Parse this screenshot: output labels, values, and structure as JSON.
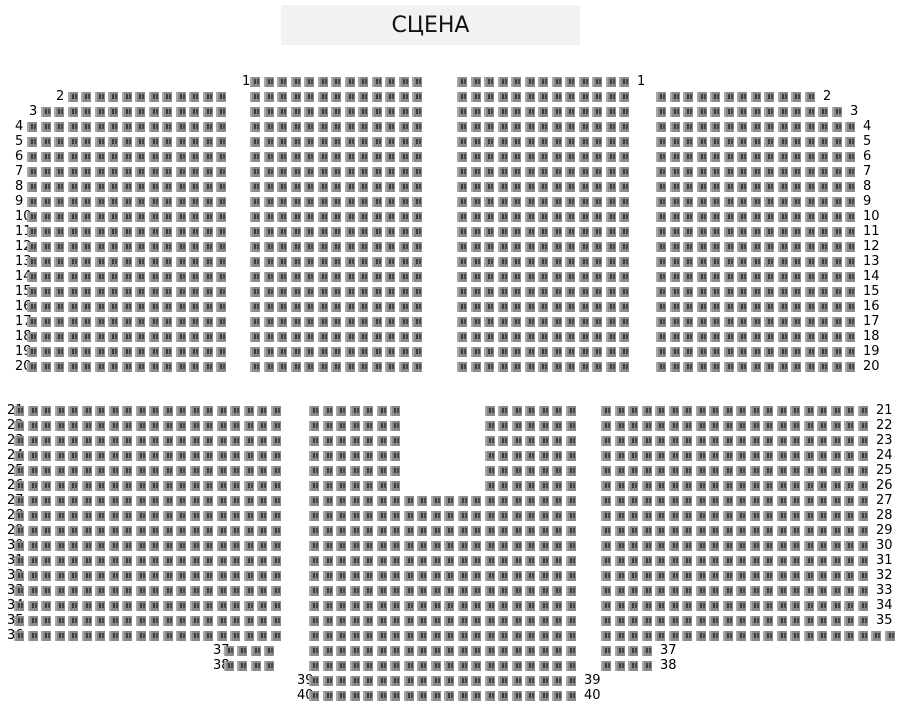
{
  "stage": {
    "label": "СЦЕНА"
  },
  "colors": {
    "seat": "#8a8a8a",
    "stage_bg": "#f2f2f2"
  },
  "blocks": [
    {
      "id": "top-left",
      "rows": [
        {
          "row": 2,
          "seats": 12,
          "labels": "left"
        },
        {
          "row": 3,
          "seats": 14,
          "labels": "left"
        },
        {
          "row": 4,
          "seats": 15,
          "labels": "left"
        },
        {
          "row": 5,
          "seats": 15,
          "labels": "left"
        },
        {
          "row": 6,
          "seats": 15,
          "labels": "left"
        },
        {
          "row": 7,
          "seats": 15,
          "labels": "left"
        },
        {
          "row": 8,
          "seats": 15,
          "labels": "left"
        },
        {
          "row": 9,
          "seats": 15,
          "labels": "left"
        },
        {
          "row": 10,
          "seats": 15,
          "labels": "left"
        },
        {
          "row": 11,
          "seats": 15,
          "labels": "left"
        },
        {
          "row": 12,
          "seats": 15,
          "labels": "left"
        },
        {
          "row": 13,
          "seats": 15,
          "labels": "left"
        },
        {
          "row": 14,
          "seats": 15,
          "labels": "left"
        },
        {
          "row": 15,
          "seats": 15,
          "labels": "left"
        },
        {
          "row": 16,
          "seats": 15,
          "labels": "left"
        },
        {
          "row": 17,
          "seats": 15,
          "labels": "left"
        },
        {
          "row": 18,
          "seats": 15,
          "labels": "left"
        },
        {
          "row": 19,
          "seats": 15,
          "labels": "left"
        },
        {
          "row": 20,
          "seats": 15,
          "labels": "left"
        }
      ]
    },
    {
      "id": "top-center-left",
      "rows": [
        {
          "row": 1,
          "seats": 13,
          "labels": "left"
        },
        {
          "row": 2,
          "seats": 13,
          "labels": "none"
        },
        {
          "row": 3,
          "seats": 13,
          "labels": "none"
        },
        {
          "row": 4,
          "seats": 13,
          "labels": "none"
        },
        {
          "row": 5,
          "seats": 13,
          "labels": "none"
        },
        {
          "row": 6,
          "seats": 13,
          "labels": "none"
        },
        {
          "row": 7,
          "seats": 13,
          "labels": "none"
        },
        {
          "row": 8,
          "seats": 13,
          "labels": "none"
        },
        {
          "row": 9,
          "seats": 13,
          "labels": "none"
        },
        {
          "row": 10,
          "seats": 13,
          "labels": "none"
        },
        {
          "row": 11,
          "seats": 13,
          "labels": "none"
        },
        {
          "row": 12,
          "seats": 13,
          "labels": "none"
        },
        {
          "row": 13,
          "seats": 13,
          "labels": "none"
        },
        {
          "row": 14,
          "seats": 13,
          "labels": "none"
        },
        {
          "row": 15,
          "seats": 13,
          "labels": "none"
        },
        {
          "row": 16,
          "seats": 13,
          "labels": "none"
        },
        {
          "row": 17,
          "seats": 13,
          "labels": "none"
        },
        {
          "row": 18,
          "seats": 13,
          "labels": "none"
        },
        {
          "row": 19,
          "seats": 13,
          "labels": "none"
        },
        {
          "row": 20,
          "seats": 13,
          "labels": "none"
        }
      ]
    },
    {
      "id": "top-center-right",
      "rows": [
        {
          "row": 1,
          "seats": 13,
          "labels": "right"
        },
        {
          "row": 2,
          "seats": 13,
          "labels": "none"
        },
        {
          "row": 3,
          "seats": 13,
          "labels": "none"
        },
        {
          "row": 4,
          "seats": 13,
          "labels": "none"
        },
        {
          "row": 5,
          "seats": 13,
          "labels": "none"
        },
        {
          "row": 6,
          "seats": 13,
          "labels": "none"
        },
        {
          "row": 7,
          "seats": 13,
          "labels": "none"
        },
        {
          "row": 8,
          "seats": 13,
          "labels": "none"
        },
        {
          "row": 9,
          "seats": 13,
          "labels": "none"
        },
        {
          "row": 10,
          "seats": 13,
          "labels": "none"
        },
        {
          "row": 11,
          "seats": 13,
          "labels": "none"
        },
        {
          "row": 12,
          "seats": 13,
          "labels": "none"
        },
        {
          "row": 13,
          "seats": 13,
          "labels": "none"
        },
        {
          "row": 14,
          "seats": 13,
          "labels": "none"
        },
        {
          "row": 15,
          "seats": 13,
          "labels": "none"
        },
        {
          "row": 16,
          "seats": 13,
          "labels": "none"
        },
        {
          "row": 17,
          "seats": 13,
          "labels": "none"
        },
        {
          "row": 18,
          "seats": 13,
          "labels": "none"
        },
        {
          "row": 19,
          "seats": 13,
          "labels": "none"
        },
        {
          "row": 20,
          "seats": 13,
          "labels": "none"
        }
      ]
    },
    {
      "id": "top-right",
      "rows": [
        {
          "row": 2,
          "seats": 12,
          "labels": "right"
        },
        {
          "row": 3,
          "seats": 14,
          "labels": "right"
        },
        {
          "row": 4,
          "seats": 15,
          "labels": "right"
        },
        {
          "row": 5,
          "seats": 15,
          "labels": "right"
        },
        {
          "row": 6,
          "seats": 15,
          "labels": "right"
        },
        {
          "row": 7,
          "seats": 15,
          "labels": "right"
        },
        {
          "row": 8,
          "seats": 15,
          "labels": "right"
        },
        {
          "row": 9,
          "seats": 15,
          "labels": "right"
        },
        {
          "row": 10,
          "seats": 15,
          "labels": "right"
        },
        {
          "row": 11,
          "seats": 15,
          "labels": "right"
        },
        {
          "row": 12,
          "seats": 15,
          "labels": "right"
        },
        {
          "row": 13,
          "seats": 15,
          "labels": "right"
        },
        {
          "row": 14,
          "seats": 15,
          "labels": "right"
        },
        {
          "row": 15,
          "seats": 15,
          "labels": "right"
        },
        {
          "row": 16,
          "seats": 15,
          "labels": "right"
        },
        {
          "row": 17,
          "seats": 15,
          "labels": "right"
        },
        {
          "row": 18,
          "seats": 15,
          "labels": "right"
        },
        {
          "row": 19,
          "seats": 15,
          "labels": "right"
        },
        {
          "row": 20,
          "seats": 15,
          "labels": "right"
        }
      ]
    },
    {
      "id": "bottom-left",
      "rows": [
        {
          "row": 21,
          "seats": 20,
          "labels": "left"
        },
        {
          "row": 22,
          "seats": 20,
          "labels": "left"
        },
        {
          "row": 23,
          "seats": 20,
          "labels": "left"
        },
        {
          "row": 24,
          "seats": 20,
          "labels": "left"
        },
        {
          "row": 25,
          "seats": 20,
          "labels": "left"
        },
        {
          "row": 26,
          "seats": 20,
          "labels": "left"
        },
        {
          "row": 27,
          "seats": 20,
          "labels": "left"
        },
        {
          "row": 28,
          "seats": 20,
          "labels": "left"
        },
        {
          "row": 29,
          "seats": 20,
          "labels": "left"
        },
        {
          "row": 30,
          "seats": 20,
          "labels": "left"
        },
        {
          "row": 31,
          "seats": 20,
          "labels": "left"
        },
        {
          "row": 32,
          "seats": 20,
          "labels": "left"
        },
        {
          "row": 33,
          "seats": 20,
          "labels": "left"
        },
        {
          "row": 34,
          "seats": 20,
          "labels": "left"
        },
        {
          "row": 35,
          "seats": 20,
          "labels": "left"
        },
        {
          "row": 36,
          "seats": 20,
          "labels": "left"
        },
        {
          "row": 37,
          "seats": 4,
          "labels": "left"
        },
        {
          "row": 38,
          "seats": 4,
          "labels": "left"
        }
      ]
    },
    {
      "id": "bottom-center",
      "rows": [
        {
          "row": 21,
          "seats": 7,
          "seats_right": 7,
          "labels": "none"
        },
        {
          "row": 22,
          "seats": 7,
          "seats_right": 7,
          "labels": "none"
        },
        {
          "row": 23,
          "seats": 7,
          "seats_right": 7,
          "labels": "none"
        },
        {
          "row": 24,
          "seats": 7,
          "seats_right": 7,
          "labels": "none"
        },
        {
          "row": 25,
          "seats": 7,
          "seats_right": 7,
          "labels": "none"
        },
        {
          "row": 26,
          "seats": 7,
          "seats_right": 7,
          "labels": "none"
        },
        {
          "row": 27,
          "seats": 20,
          "labels": "none"
        },
        {
          "row": 28,
          "seats": 20,
          "labels": "none"
        },
        {
          "row": 29,
          "seats": 20,
          "labels": "none"
        },
        {
          "row": 30,
          "seats": 20,
          "labels": "none"
        },
        {
          "row": 31,
          "seats": 20,
          "labels": "none"
        },
        {
          "row": 32,
          "seats": 20,
          "labels": "none"
        },
        {
          "row": 33,
          "seats": 20,
          "labels": "none"
        },
        {
          "row": 34,
          "seats": 20,
          "labels": "none"
        },
        {
          "row": 35,
          "seats": 20,
          "labels": "none"
        },
        {
          "row": 36,
          "seats": 20,
          "labels": "none"
        },
        {
          "row": 37,
          "seats": 20,
          "labels": "none"
        },
        {
          "row": 38,
          "seats": 20,
          "labels": "none"
        },
        {
          "row": 39,
          "seats": 20,
          "labels": "both"
        },
        {
          "row": 40,
          "seats": 20,
          "labels": "both"
        }
      ]
    },
    {
      "id": "bottom-right",
      "rows": [
        {
          "row": 21,
          "seats": 20,
          "labels": "right"
        },
        {
          "row": 22,
          "seats": 20,
          "labels": "right"
        },
        {
          "row": 23,
          "seats": 20,
          "labels": "right"
        },
        {
          "row": 24,
          "seats": 20,
          "labels": "right"
        },
        {
          "row": 25,
          "seats": 20,
          "labels": "right"
        },
        {
          "row": 26,
          "seats": 20,
          "labels": "right"
        },
        {
          "row": 27,
          "seats": 20,
          "labels": "right"
        },
        {
          "row": 28,
          "seats": 20,
          "labels": "right"
        },
        {
          "row": 29,
          "seats": 20,
          "labels": "right"
        },
        {
          "row": 30,
          "seats": 20,
          "labels": "right"
        },
        {
          "row": 31,
          "seats": 20,
          "labels": "right"
        },
        {
          "row": 32,
          "seats": 20,
          "labels": "right"
        },
        {
          "row": 33,
          "seats": 20,
          "labels": "right"
        },
        {
          "row": 34,
          "seats": 20,
          "labels": "right"
        },
        {
          "row": 35,
          "seats": 20,
          "labels": "right"
        },
        {
          "row": 36,
          "seats": 22,
          "labels": "right"
        },
        {
          "row": 37,
          "seats": 4,
          "labels": "right"
        },
        {
          "row": 38,
          "seats": 4,
          "labels": "right"
        }
      ]
    }
  ]
}
